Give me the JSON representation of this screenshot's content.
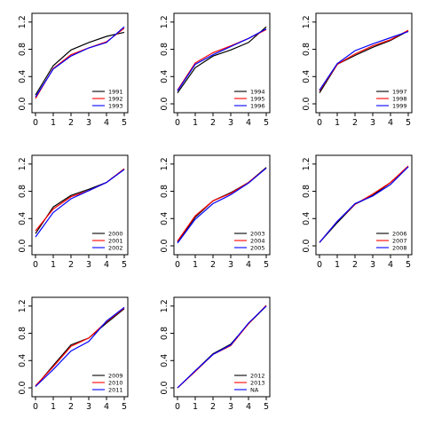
{
  "chart_data": [
    {
      "type": "line",
      "x": [
        0,
        1,
        2,
        3,
        4,
        5
      ],
      "ylim": [
        0,
        1.25
      ],
      "xlim": [
        0,
        5
      ],
      "x_ticks": [
        "0",
        "1",
        "2",
        "3",
        "4",
        "5"
      ],
      "y_ticks": [
        "0.0",
        "0.4",
        "0.8",
        "1.2"
      ],
      "legend_position": "bottom-right",
      "series": [
        {
          "name": "1991",
          "color": "#000000",
          "values": [
            0.13,
            0.56,
            0.79,
            0.9,
            0.99,
            1.05
          ]
        },
        {
          "name": "1992",
          "color": "#ff0000",
          "values": [
            0.08,
            0.52,
            0.72,
            0.82,
            0.91,
            1.11
          ]
        },
        {
          "name": "1993",
          "color": "#0000ff",
          "values": [
            0.1,
            0.51,
            0.7,
            0.82,
            0.9,
            1.13
          ]
        }
      ]
    },
    {
      "type": "line",
      "x": [
        0,
        1,
        2,
        3,
        4,
        5
      ],
      "ylim": [
        0,
        1.25
      ],
      "xlim": [
        0,
        5
      ],
      "x_ticks": [
        "0",
        "1",
        "2",
        "3",
        "4",
        "5"
      ],
      "y_ticks": [
        "0.0",
        "0.4",
        "0.8",
        "1.2"
      ],
      "legend_position": "bottom-right",
      "series": [
        {
          "name": "1994",
          "color": "#000000",
          "values": [
            0.16,
            0.53,
            0.7,
            0.79,
            0.9,
            1.13
          ]
        },
        {
          "name": "1995",
          "color": "#ff0000",
          "values": [
            0.2,
            0.6,
            0.75,
            0.85,
            0.96,
            1.09
          ]
        },
        {
          "name": "1996",
          "color": "#0000ff",
          "values": [
            0.19,
            0.58,
            0.72,
            0.84,
            0.96,
            1.1
          ]
        }
      ]
    },
    {
      "type": "line",
      "x": [
        0,
        1,
        2,
        3,
        4,
        5
      ],
      "ylim": [
        0,
        1.25
      ],
      "xlim": [
        0,
        5
      ],
      "x_ticks": [
        "0",
        "1",
        "2",
        "3",
        "4",
        "5"
      ],
      "y_ticks": [
        "0.0",
        "0.4",
        "0.8",
        "1.2"
      ],
      "legend_position": "bottom-right",
      "series": [
        {
          "name": "1997",
          "color": "#000000",
          "values": [
            0.16,
            0.58,
            0.71,
            0.83,
            0.93,
            1.07
          ]
        },
        {
          "name": "1998",
          "color": "#ff0000",
          "values": [
            0.19,
            0.58,
            0.73,
            0.85,
            0.94,
            1.08
          ]
        },
        {
          "name": "1999",
          "color": "#0000ff",
          "values": [
            0.2,
            0.59,
            0.78,
            0.88,
            0.97,
            1.06
          ]
        }
      ]
    },
    {
      "type": "line",
      "x": [
        0,
        1,
        2,
        3,
        4,
        5
      ],
      "ylim": [
        0,
        1.25
      ],
      "xlim": [
        0,
        5
      ],
      "x_ticks": [
        "0",
        "1",
        "2",
        "3",
        "4",
        "5"
      ],
      "y_ticks": [
        "0.0",
        "0.4",
        "0.8",
        "1.2"
      ],
      "legend_position": "bottom-right",
      "series": [
        {
          "name": "2000",
          "color": "#000000",
          "values": [
            0.18,
            0.57,
            0.74,
            0.83,
            0.93,
            1.13
          ]
        },
        {
          "name": "2001",
          "color": "#ff0000",
          "values": [
            0.22,
            0.54,
            0.72,
            0.81,
            0.93,
            1.13
          ]
        },
        {
          "name": "2002",
          "color": "#0000ff",
          "values": [
            0.13,
            0.49,
            0.69,
            0.81,
            0.93,
            1.12
          ]
        }
      ]
    },
    {
      "type": "line",
      "x": [
        0,
        1,
        2,
        3,
        4,
        5
      ],
      "ylim": [
        0,
        1.25
      ],
      "xlim": [
        0,
        5
      ],
      "x_ticks": [
        "0",
        "1",
        "2",
        "3",
        "4",
        "5"
      ],
      "y_ticks": [
        "0.0",
        "0.4",
        "0.8",
        "1.2"
      ],
      "legend_position": "bottom-right",
      "series": [
        {
          "name": "2003",
          "color": "#000000",
          "values": [
            0.06,
            0.42,
            0.66,
            0.78,
            0.93,
            1.15
          ]
        },
        {
          "name": "2004",
          "color": "#ff0000",
          "values": [
            0.07,
            0.44,
            0.66,
            0.77,
            0.93,
            1.14
          ]
        },
        {
          "name": "2005",
          "color": "#0000ff",
          "values": [
            0.04,
            0.39,
            0.62,
            0.75,
            0.92,
            1.14
          ]
        }
      ]
    },
    {
      "type": "line",
      "x": [
        0,
        1,
        2,
        3,
        4,
        5
      ],
      "ylim": [
        0,
        1.25
      ],
      "xlim": [
        0,
        5
      ],
      "x_ticks": [
        "0",
        "1",
        "2",
        "3",
        "4",
        "5"
      ],
      "y_ticks": [
        "0.0",
        "0.4",
        "0.8",
        "1.2"
      ],
      "legend_position": "bottom-right",
      "series": [
        {
          "name": "2006",
          "color": "#000000",
          "values": [
            0.05,
            0.34,
            0.61,
            0.74,
            0.93,
            1.16
          ]
        },
        {
          "name": "2007",
          "color": "#ff0000",
          "values": [
            0.05,
            0.36,
            0.61,
            0.76,
            0.93,
            1.17
          ]
        },
        {
          "name": "2008",
          "color": "#0000ff",
          "values": [
            0.05,
            0.36,
            0.62,
            0.73,
            0.9,
            1.16
          ]
        }
      ]
    },
    {
      "type": "line",
      "x": [
        0,
        1,
        2,
        3,
        4,
        5
      ],
      "ylim": [
        0,
        1.25
      ],
      "xlim": [
        0,
        5
      ],
      "x_ticks": [
        "0",
        "1",
        "2",
        "3",
        "4",
        "5"
      ],
      "y_ticks": [
        "0.0",
        "0.4",
        "0.8",
        "1.2"
      ],
      "legend_position": "bottom-right",
      "series": [
        {
          "name": "2009",
          "color": "#000000",
          "values": [
            0.02,
            0.33,
            0.63,
            0.73,
            0.95,
            1.16
          ]
        },
        {
          "name": "2010",
          "color": "#ff0000",
          "values": [
            0.03,
            0.31,
            0.61,
            0.73,
            0.97,
            1.17
          ]
        },
        {
          "name": "2011",
          "color": "#0000ff",
          "values": [
            0.02,
            0.27,
            0.54,
            0.68,
            0.98,
            1.18
          ]
        }
      ]
    },
    {
      "type": "line",
      "x": [
        0,
        1,
        2,
        3,
        4,
        5
      ],
      "ylim": [
        0,
        1.25
      ],
      "xlim": [
        0,
        5
      ],
      "x_ticks": [
        "0",
        "1",
        "2",
        "3",
        "4",
        "5"
      ],
      "y_ticks": [
        "0.0",
        "0.4",
        "0.8",
        "1.2"
      ],
      "legend_position": "bottom-right",
      "series": [
        {
          "name": "2012",
          "color": "#000000",
          "values": [
            0.0,
            0.25,
            0.5,
            0.64,
            0.94,
            1.2
          ]
        },
        {
          "name": "2013",
          "color": "#ff0000",
          "values": [
            0.0,
            0.24,
            0.49,
            0.62,
            0.94,
            1.21
          ]
        },
        {
          "name": "NA",
          "color": "#0000ff",
          "values": [
            0.0,
            0.25,
            0.49,
            0.63,
            0.95,
            1.2
          ]
        }
      ]
    }
  ]
}
